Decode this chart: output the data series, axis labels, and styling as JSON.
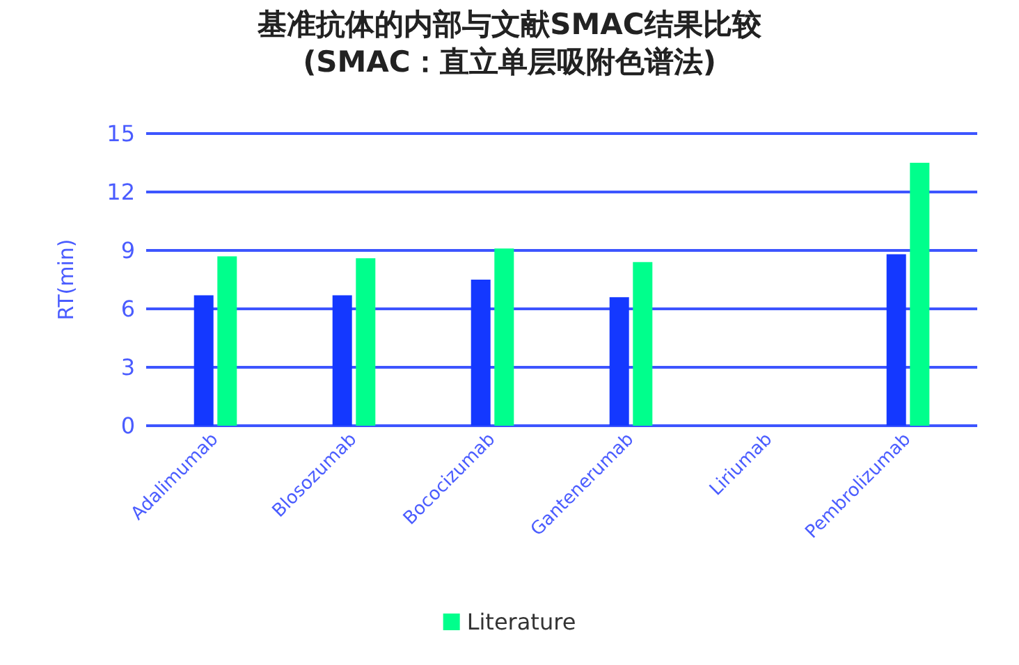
{
  "chart_data": {
    "type": "bar",
    "title": "基准抗体的内部与文献SMAC结果比较",
    "subtitle": "(SMAC：直立单层吸附色谱法)",
    "ylabel": "RT(min)",
    "categories": [
      "Adalimumab",
      "Blosozumab",
      "Bococizumab",
      "Gantenerumab",
      "Liriumab",
      "Pembrolizumab"
    ],
    "series": [
      {
        "color": "#1438ff",
        "values": [
          6.7,
          6.7,
          7.5,
          6.6,
          null,
          8.8
        ]
      },
      {
        "name": "Literature",
        "color": "#00ff8c",
        "values": [
          8.7,
          8.6,
          9.1,
          8.4,
          null,
          13.5
        ]
      }
    ],
    "ylim": [
      0,
      15
    ],
    "yticks": [
      0,
      3,
      6,
      9,
      12,
      15
    ],
    "grid": "y",
    "legend": "bottom"
  }
}
